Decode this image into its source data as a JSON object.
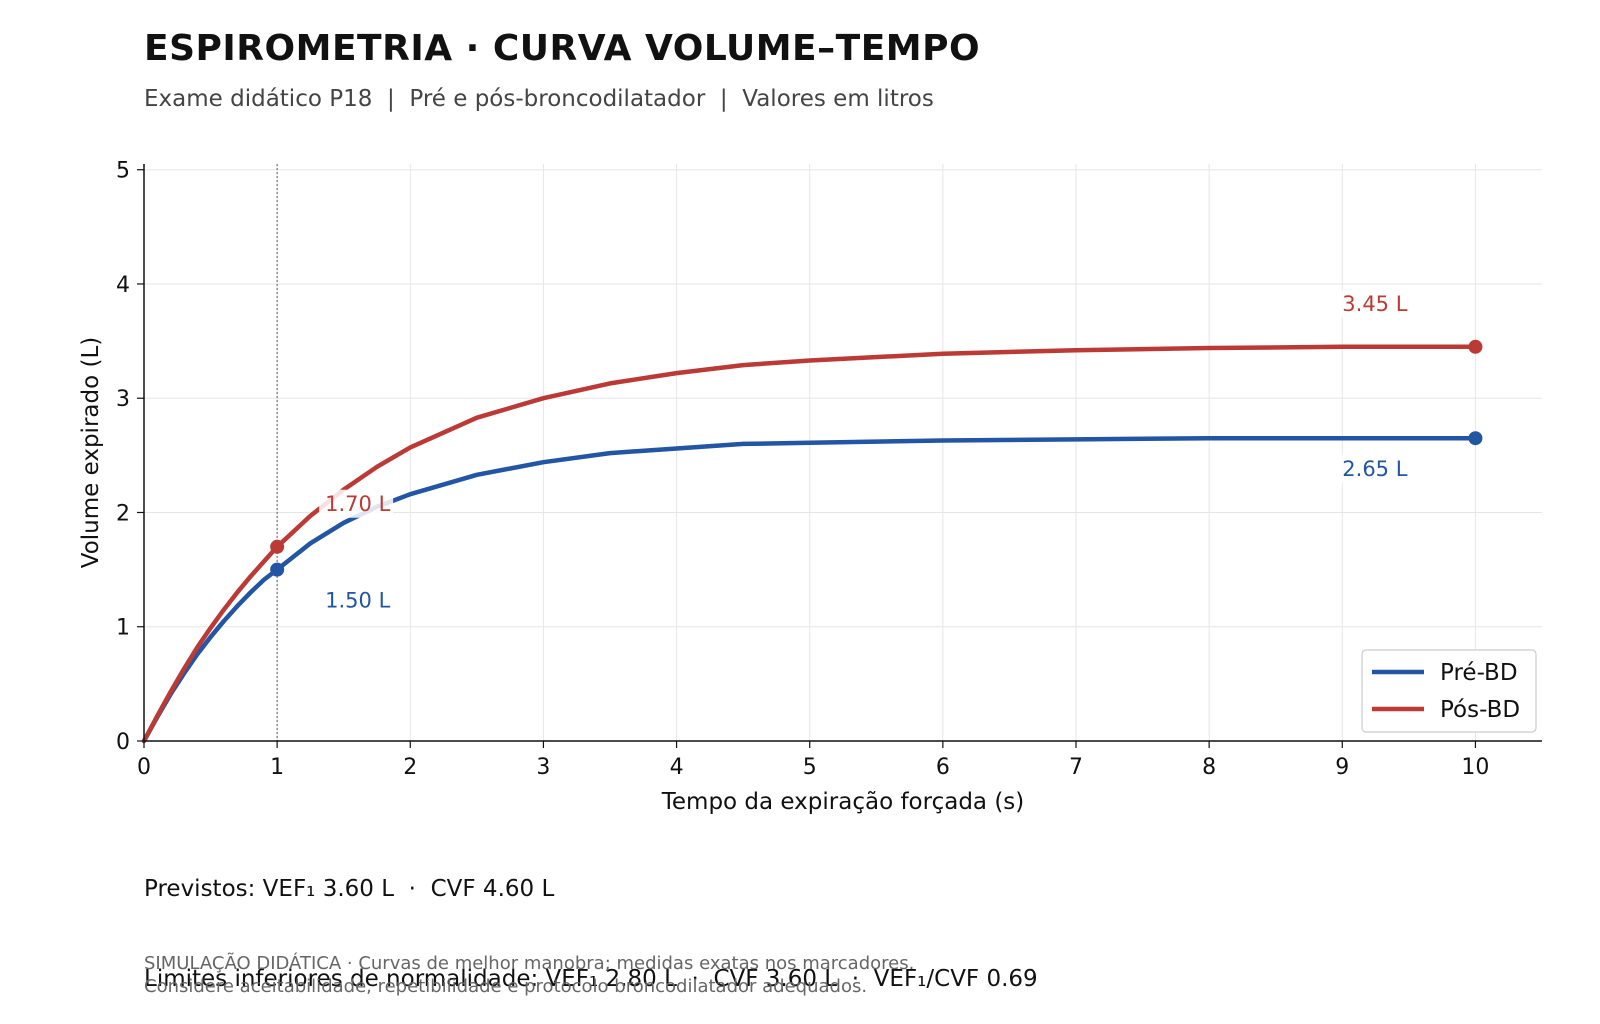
{
  "title": "ESPIROMETRIA · CURVA VOLUME–TEMPO",
  "subtitle": "Exame didático P18  |  Pré e pós-broncodilatador  |  Valores em litros",
  "notes": {
    "predicted": "Previstos: VEF₁ 3.60 L  ·  CVF 4.60 L",
    "lower_limits": "Limites inferiores de normalidade: VEF₁ 2.80 L  ·  CVF 3.60 L  ·  VEF₁/CVF 0.69"
  },
  "footer": {
    "line1": "SIMULAÇÃO DIDÁTICA · Curvas de melhor manobra; medidas exatas nos marcadores.",
    "line2": "Considere aceitabilidade, repetibilidade e protocolo broncodilatador adequados."
  },
  "chart_data": {
    "type": "line",
    "xlabel": "Tempo da expiração forçada (s)",
    "ylabel": "Volume expirado (L)",
    "xlim": [
      0,
      10.5
    ],
    "ylim": [
      0,
      5.05
    ],
    "xticks": [
      0,
      1,
      2,
      3,
      4,
      5,
      6,
      7,
      8,
      9,
      10
    ],
    "yticks": [
      0,
      1,
      2,
      3,
      4,
      5
    ],
    "grid": true,
    "reference_line_x": 1,
    "legend_position": "bottom-right",
    "series": [
      {
        "name": "Pré-BD",
        "color": "#2255a4",
        "x": [
          0,
          0.1,
          0.2,
          0.3,
          0.4,
          0.5,
          0.6,
          0.7,
          0.8,
          0.9,
          1,
          1.25,
          1.5,
          1.75,
          2,
          2.5,
          3,
          3.5,
          4,
          4.5,
          5,
          6,
          7,
          8,
          9,
          10
        ],
        "y": [
          0,
          0.21,
          0.41,
          0.59,
          0.76,
          0.91,
          1.05,
          1.18,
          1.3,
          1.41,
          1.5,
          1.73,
          1.91,
          2.05,
          2.16,
          2.33,
          2.44,
          2.52,
          2.56,
          2.6,
          2.61,
          2.63,
          2.64,
          2.65,
          2.65,
          2.65
        ],
        "markers": [
          {
            "x": 1,
            "y": 1.5,
            "label": "1.50 L"
          },
          {
            "x": 10,
            "y": 2.65,
            "label": "2.65 L"
          }
        ]
      },
      {
        "name": "Pós-BD",
        "color": "#bb3a35",
        "x": [
          0,
          0.1,
          0.2,
          0.3,
          0.4,
          0.5,
          0.6,
          0.7,
          0.8,
          0.9,
          1,
          1.25,
          1.5,
          1.75,
          2,
          2.5,
          3,
          3.5,
          4,
          4.5,
          5,
          6,
          7,
          8,
          9,
          10
        ],
        "y": [
          0,
          0.22,
          0.43,
          0.63,
          0.82,
          0.99,
          1.15,
          1.3,
          1.44,
          1.57,
          1.7,
          1.97,
          2.2,
          2.4,
          2.57,
          2.83,
          3.0,
          3.13,
          3.22,
          3.29,
          3.33,
          3.39,
          3.42,
          3.44,
          3.45,
          3.45
        ],
        "markers": [
          {
            "x": 1,
            "y": 1.7,
            "label": "1.70 L"
          },
          {
            "x": 10,
            "y": 3.45,
            "label": "3.45 L"
          }
        ]
      }
    ]
  }
}
